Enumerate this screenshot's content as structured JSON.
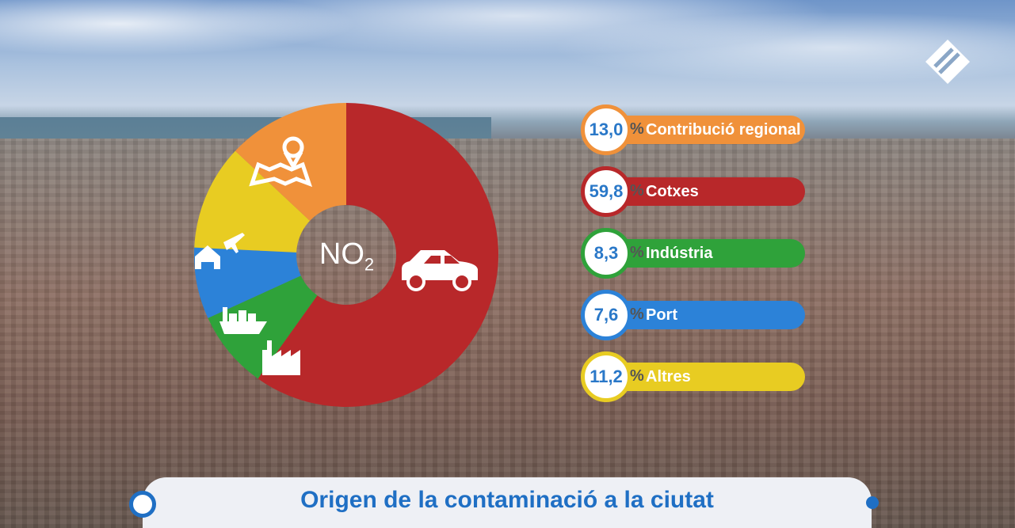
{
  "chart_data": {
    "type": "pie",
    "title": "Origen de la contaminació a la ciutat",
    "center_label": {
      "main": "NO",
      "sub": "2"
    },
    "unit": "%",
    "slices": [
      {
        "label": "Cotxes",
        "value": "59,8",
        "num": 59.8,
        "color": "#b8282a",
        "icon": "car-icon"
      },
      {
        "label": "Indústria",
        "value": "8,3",
        "num": 8.3,
        "color": "#2fa23a",
        "icon": "factory-icon"
      },
      {
        "label": "Port",
        "value": "7,6",
        "num": 7.6,
        "color": "#2c82d8",
        "icon": "ship-icon"
      },
      {
        "label": "Altres",
        "value": "11,2",
        "num": 11.2,
        "color": "#e8cc22",
        "icon": "house-plane-icon"
      },
      {
        "label": "Contribució regional",
        "value": "13,0",
        "num": 13.0,
        "color": "#f0913a",
        "icon": "map-pin-icon"
      }
    ],
    "legend_order": [
      4,
      0,
      1,
      2,
      3
    ]
  }
}
